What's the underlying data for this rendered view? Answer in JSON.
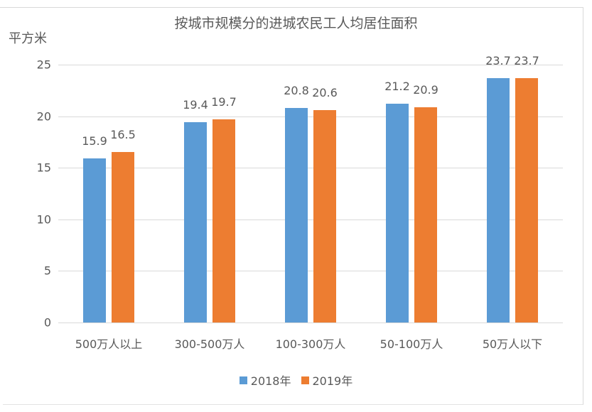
{
  "chart_data": {
    "type": "bar",
    "title": "按城市规模分的进城农民工人均居住面积",
    "ylabel": "平方米",
    "xlabel": "",
    "ylim": [
      0,
      25
    ],
    "yticks": [
      0,
      5,
      10,
      15,
      20,
      25
    ],
    "grid": true,
    "legend_position": "bottom",
    "categories": [
      "500万人以上",
      "300-500万人",
      "100-300万人",
      "50-100万人",
      "50万人以下"
    ],
    "series": [
      {
        "name": "2018年",
        "color": "#5b9bd5",
        "values": [
          15.9,
          19.4,
          20.8,
          21.2,
          23.7
        ]
      },
      {
        "name": "2019年",
        "color": "#ed7d31",
        "values": [
          16.5,
          19.7,
          20.6,
          20.9,
          23.7
        ]
      }
    ],
    "data_labels": true
  }
}
